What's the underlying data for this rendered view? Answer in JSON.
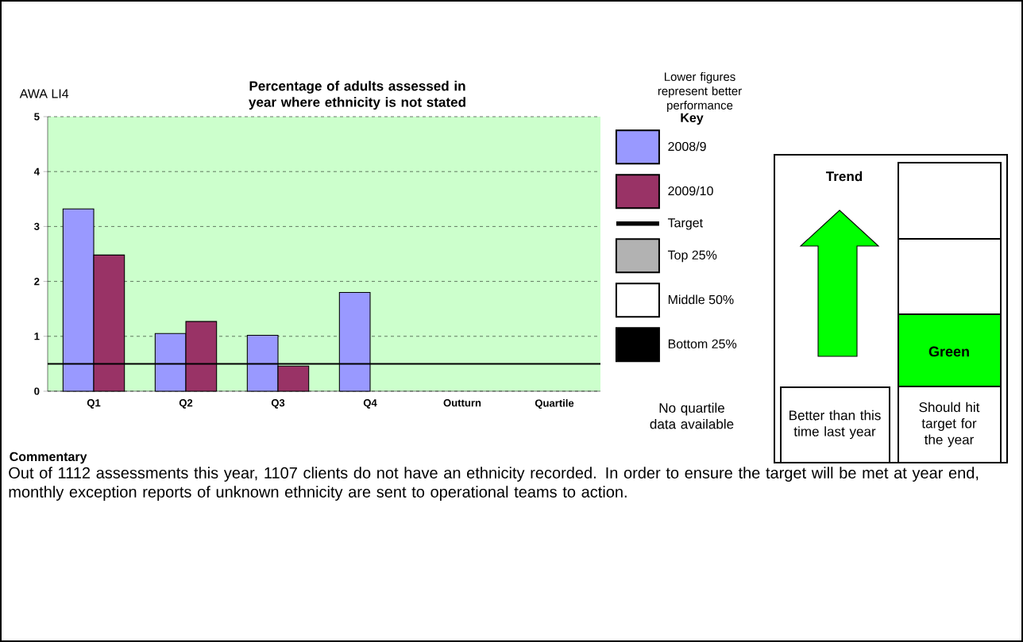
{
  "chart_data": {
    "type": "bar",
    "title": "Percentage of adults assessed in year where ethnicity is not stated",
    "categories": [
      "Q1",
      "Q2",
      "Q3",
      "Q4",
      "Outturn",
      "Quartile"
    ],
    "series": [
      {
        "name": "2008/9",
        "color": "#9999ff",
        "values": [
          3.32,
          1.05,
          1.02,
          1.8,
          null,
          null
        ]
      },
      {
        "name": "2009/10",
        "color": "#993366",
        "values": [
          2.48,
          1.27,
          0.46,
          null,
          null,
          null
        ]
      }
    ],
    "ylim": [
      0,
      5
    ],
    "yticks": [
      0,
      1,
      2,
      3,
      4,
      5
    ],
    "grid": "y",
    "legend": "right",
    "legend_title": "Key",
    "ref_lines": [
      {
        "axis": "y",
        "value": 0.5,
        "label": "Target",
        "color": "#000000"
      }
    ],
    "annotations": [
      "AWA LI4",
      "Lower figures represent better performance",
      "Top 25%",
      "Middle 50%",
      "Bottom 25%",
      "No quartile data available",
      "Trend",
      "Better than this time last year",
      "Green",
      "Should hit target for the year",
      "Commentary",
      "Out of 1112 assessments this year, 1107 clients do not have an ethnicity recorded. In order to ensure the target will be met at year end, monthly exception reports of unknown ethnicity are sent to operational teams to action."
    ]
  }
}
